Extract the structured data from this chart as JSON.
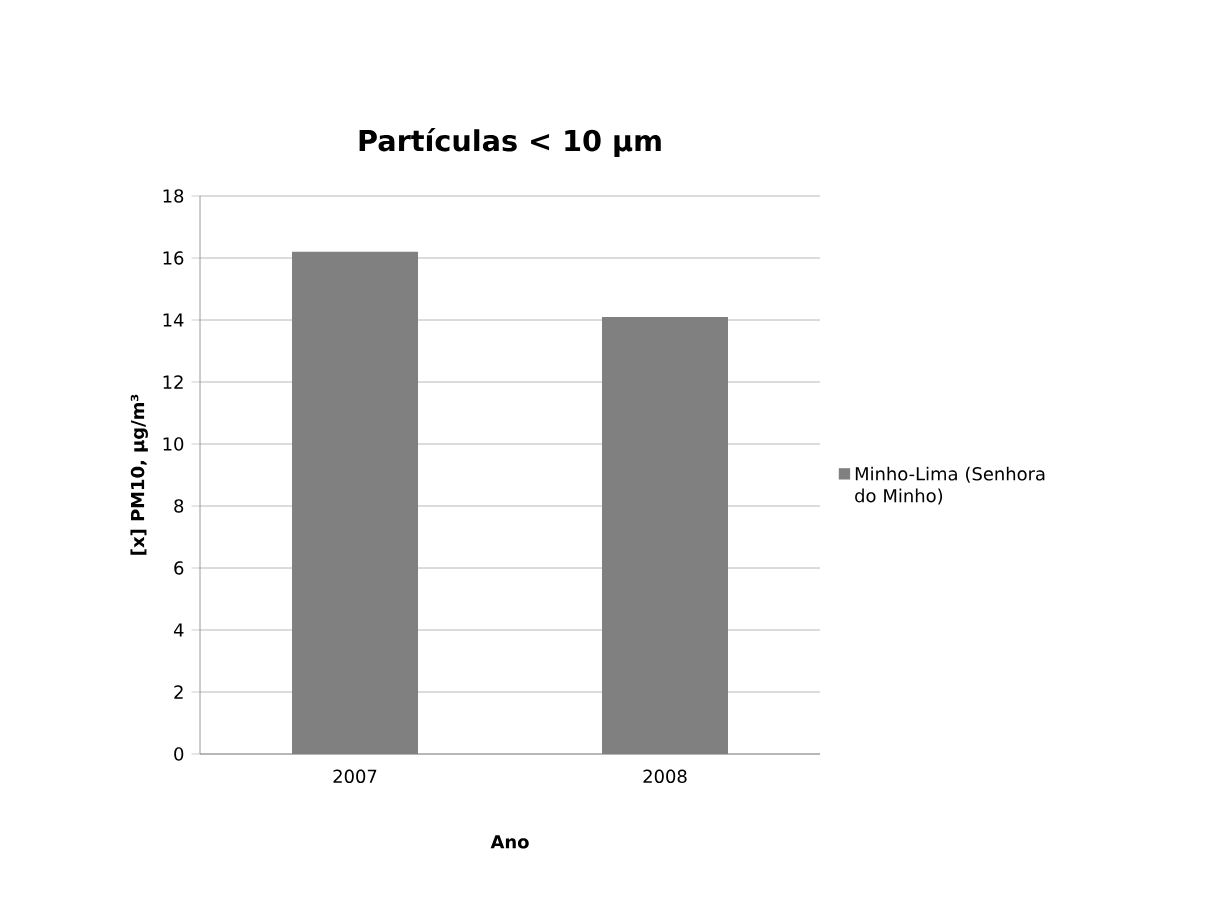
{
  "chart_data": {
    "type": "bar",
    "title": "Partículas < 10 µm",
    "xlabel": "Ano",
    "ylabel": "[x] PM10, µg/m³",
    "categories": [
      "2007",
      "2008"
    ],
    "series": [
      {
        "name": "Minho-Lima (Senhora do Minho)",
        "color": "#808080",
        "values": [
          16.2,
          14.1
        ]
      }
    ],
    "ylim": [
      0,
      18
    ],
    "yticks": [
      0,
      2,
      4,
      6,
      8,
      10,
      12,
      14,
      16,
      18
    ],
    "grid": "y",
    "legend": "right"
  }
}
